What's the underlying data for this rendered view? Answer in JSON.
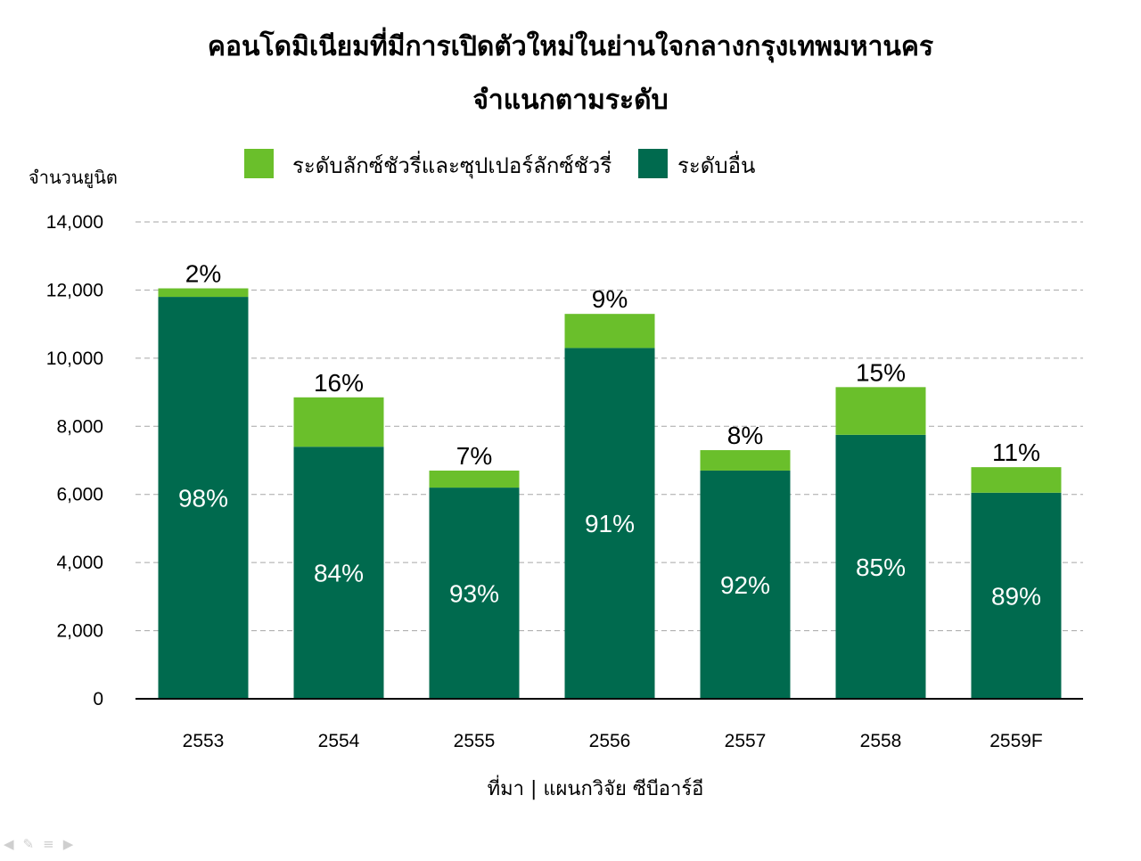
{
  "chart_data": {
    "type": "bar",
    "stacked": true,
    "title": [
      "คอนโดมิเนียมที่มีการเปิดตัวใหม่ในย่านใจกลางกรุงเทพมหานคร",
      "จำแนกตามระดับ"
    ],
    "ylabel": "จำนวนยูนิต",
    "source": "ที่มา | แผนกวิจัย ซีบีอาร์อี",
    "categories": [
      "2553",
      "2554",
      "2555",
      "2556",
      "2557",
      "2558",
      "2559F"
    ],
    "ylim": [
      0,
      14000
    ],
    "yticks": [
      0,
      2000,
      4000,
      6000,
      8000,
      10000,
      12000,
      14000
    ],
    "ytick_labels": [
      "0",
      "2,000",
      "4,000",
      "6,000",
      "8,000",
      "10,000",
      "12,000",
      "14,000"
    ],
    "grid": true,
    "legend_position": "top",
    "series": [
      {
        "name": "ระดับอื่น",
        "color": "#006a4e",
        "values": [
          11800,
          7400,
          6200,
          10300,
          6700,
          7750,
          6050
        ],
        "labels": [
          "98%",
          "84%",
          "93%",
          "91%",
          "92%",
          "85%",
          "89%"
        ]
      },
      {
        "name": "ระดับลักซ์ชัวรี่และซุปเปอร์ลักซ์ชัวรี่",
        "color": "#6abf2b",
        "values": [
          250,
          1450,
          500,
          1000,
          600,
          1400,
          750
        ],
        "labels": [
          "2%",
          "16%",
          "7%",
          "9%",
          "8%",
          "15%",
          "11%"
        ]
      }
    ],
    "legend_order": [
      1,
      0
    ]
  },
  "colors": {
    "grid": "#a6a6a6",
    "axis": "#000000",
    "nav_icon": "#cfcfcf"
  },
  "nav_icons": [
    "prev-icon",
    "pen-icon",
    "menu-icon",
    "next-icon"
  ],
  "nav_glyphs": [
    "◀",
    "✎",
    "≡",
    "▶"
  ]
}
